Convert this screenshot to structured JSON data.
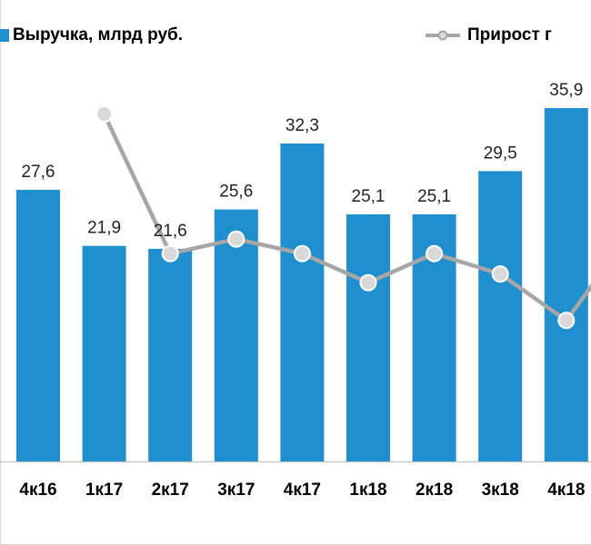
{
  "chart_data": {
    "type": "bar",
    "categories": [
      "4к16",
      "1к17",
      "2к17",
      "3к17",
      "4к17",
      "1к18",
      "2к18",
      "3к18",
      "4к18",
      ""
    ],
    "series": [
      {
        "name": "Выручка, млрд руб.",
        "kind": "bar",
        "color": "#1f8fcf",
        "values": [
          27.6,
          21.9,
          21.6,
          25.6,
          32.3,
          25.1,
          25.1,
          29.5,
          35.9,
          null
        ],
        "labels": [
          "27,6",
          "21,9",
          "21,6",
          "25,6",
          "32,3",
          "25,1",
          "25,1",
          "29,5",
          "35,9",
          ""
        ]
      },
      {
        "name": "Прирост г",
        "kind": "line",
        "color": "#a6a6a6",
        "values": [
          null,
          36,
          12,
          14.5,
          12,
          7,
          12,
          8.5,
          0.5,
          16
        ]
      }
    ],
    "ylim": [
      0,
      40
    ],
    "grid": false,
    "legend": "top"
  }
}
